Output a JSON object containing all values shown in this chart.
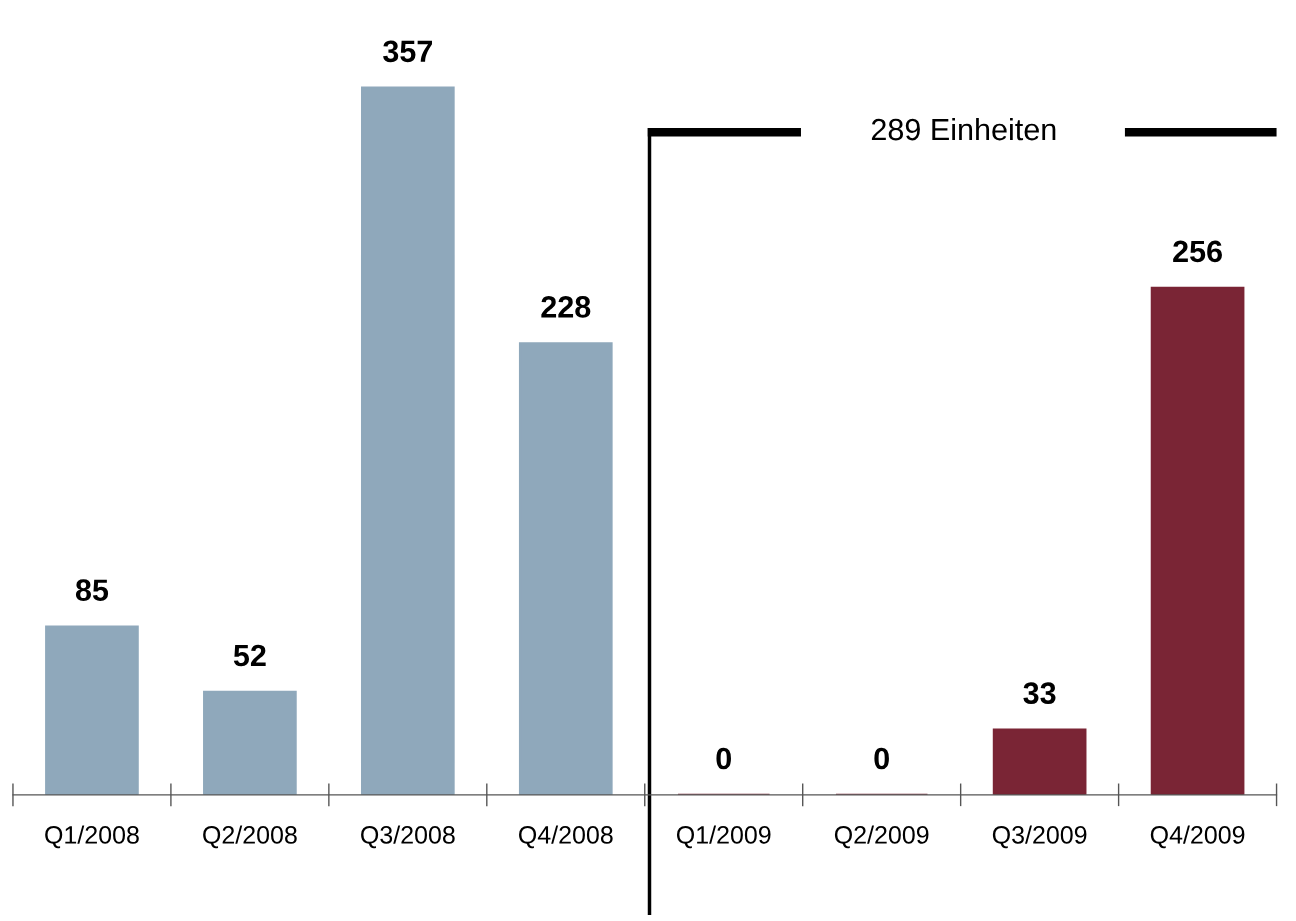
{
  "chart_data": {
    "type": "bar",
    "categories": [
      "Q1/2008",
      "Q2/2008",
      "Q3/2008",
      "Q4/2008",
      "Q1/2009",
      "Q2/2009",
      "Q3/2009",
      "Q4/2009"
    ],
    "values": [
      85,
      52,
      357,
      228,
      0,
      0,
      33,
      256
    ],
    "colors": [
      "#8fa8bb",
      "#8fa8bb",
      "#8fa8bb",
      "#8fa8bb",
      "#7a2535",
      "#7a2535",
      "#7a2535",
      "#7a2535"
    ],
    "data_labels": true,
    "annotations": [
      "289 Einheiten"
    ]
  }
}
